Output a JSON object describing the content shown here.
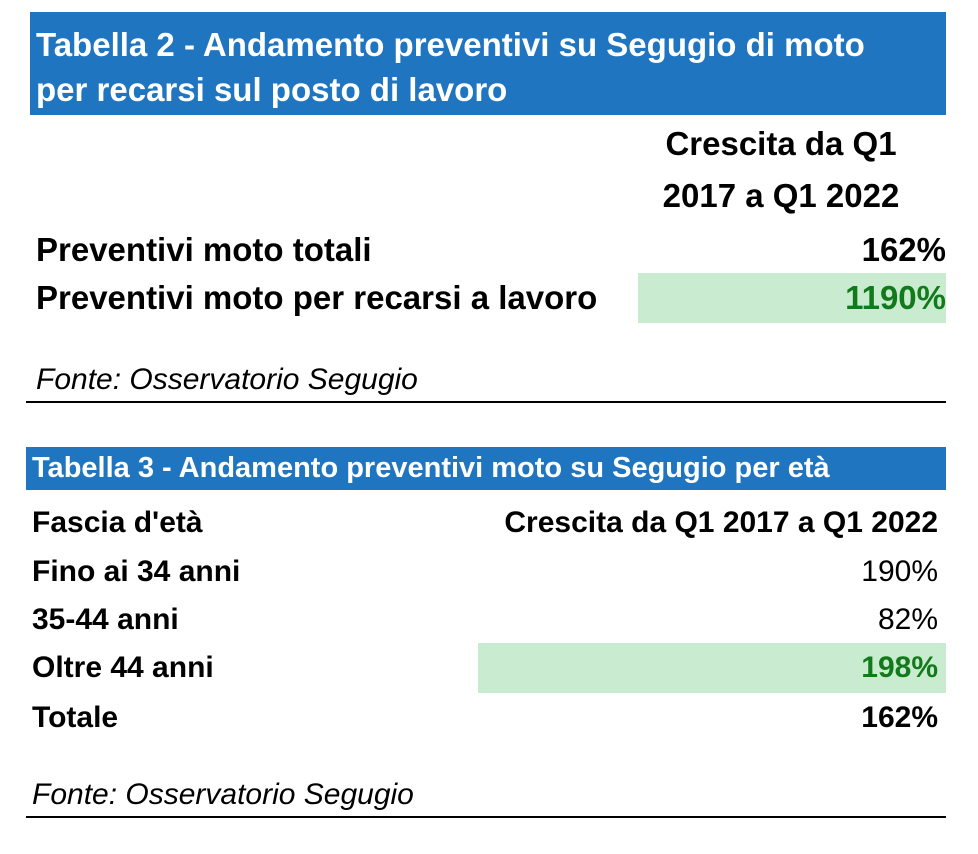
{
  "table2": {
    "title_line1": "Tabella 2 - Andamento preventivi su Segugio di moto",
    "title_line2": "per recarsi sul posto di lavoro",
    "header_line1": "Crescita da Q1",
    "header_line2": "2017 a Q1 2022",
    "rows": [
      {
        "label": "Preventivi moto totali",
        "value": "162%"
      },
      {
        "label": "Preventivi moto per recarsi a lavoro",
        "value": "1190%"
      }
    ],
    "source": "Fonte: Osservatorio Segugio"
  },
  "table3": {
    "title": "Tabella 3 - Andamento preventivi moto su Segugio per età",
    "col_label": "Fascia d'età",
    "col_value": "Crescita da Q1 2017 a Q1 2022",
    "rows": [
      {
        "label": "Fino ai 34 anni",
        "value": "190%"
      },
      {
        "label": "35-44 anni",
        "value": "82%"
      },
      {
        "label": "Oltre 44 anni",
        "value": "198%"
      },
      {
        "label": "Totale",
        "value": "162%"
      }
    ],
    "source": "Fonte: Osservatorio Segugio"
  },
  "colors": {
    "title_bar": "#1f75c0",
    "highlight_fill": "#c9ecd0",
    "highlight_text": "#137a1c"
  }
}
